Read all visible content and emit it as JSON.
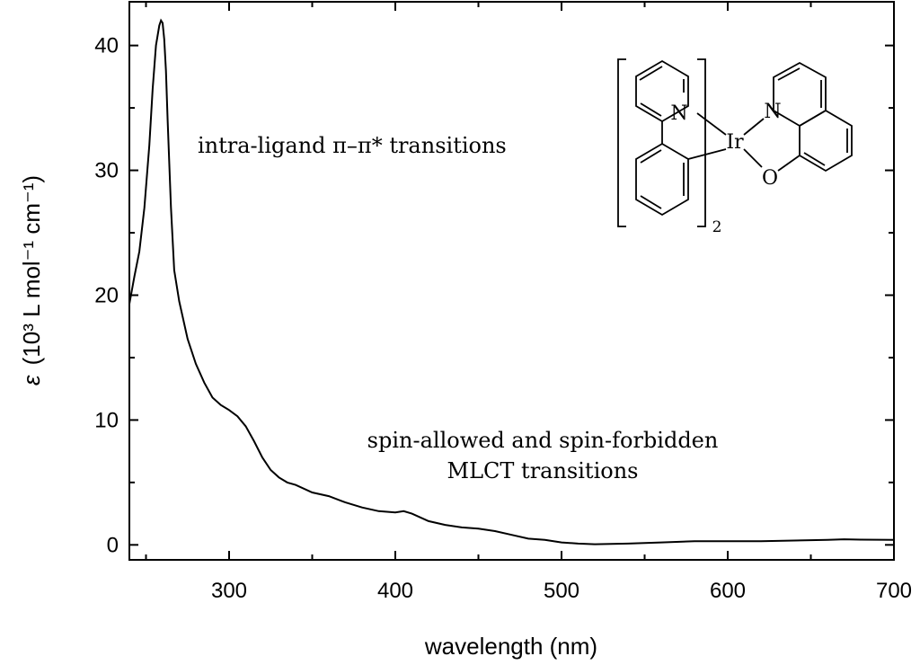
{
  "chart_data": {
    "type": "line",
    "xlabel": "wavelength (nm)",
    "ylabel_symbol": "ε",
    "ylabel_text": "(10³ L mol⁻¹ cm⁻¹)",
    "xlim": [
      240,
      700
    ],
    "ylim": [
      -1.2,
      43.5
    ],
    "xticks": [
      300,
      400,
      500,
      600,
      700
    ],
    "yticks": [
      0,
      10,
      20,
      30,
      40
    ],
    "grid": false,
    "series": [
      {
        "x": [
          240,
          243,
          246,
          249,
          252,
          254,
          256,
          258,
          259,
          260,
          261,
          262,
          263,
          265,
          267,
          270,
          275,
          280,
          285,
          290,
          295,
          300,
          305,
          310,
          315,
          320,
          325,
          330,
          335,
          340,
          350,
          360,
          370,
          380,
          390,
          400,
          405,
          410,
          420,
          430,
          440,
          450,
          460,
          470,
          480,
          490,
          500,
          510,
          520,
          540,
          560,
          580,
          600,
          620,
          640,
          660,
          670,
          680,
          700
        ],
        "y": [
          19.3,
          21.5,
          23.5,
          27.0,
          32.0,
          36.5,
          40.0,
          41.6,
          42.0,
          41.8,
          40.5,
          38.0,
          34.0,
          27.0,
          22.0,
          19.5,
          16.5,
          14.5,
          13.0,
          11.8,
          11.2,
          10.8,
          10.3,
          9.5,
          8.3,
          7.0,
          6.0,
          5.4,
          5.0,
          4.8,
          4.2,
          3.9,
          3.4,
          3.0,
          2.7,
          2.6,
          2.7,
          2.5,
          1.9,
          1.6,
          1.4,
          1.3,
          1.1,
          0.8,
          0.5,
          0.4,
          0.2,
          0.1,
          0.05,
          0.1,
          0.2,
          0.3,
          0.3,
          0.3,
          0.35,
          0.4,
          0.45,
          0.42,
          0.4
        ]
      }
    ],
    "annotations": [
      {
        "text": "intra-ligand π–π* transitions"
      },
      {
        "text": "spin-allowed and spin-forbidden"
      },
      {
        "text": "MLCT transitions"
      }
    ]
  },
  "structure": {
    "atom_N1": "N",
    "atom_Ir": "Ir",
    "atom_N2": "N",
    "atom_O": "O",
    "subscript": "2"
  }
}
